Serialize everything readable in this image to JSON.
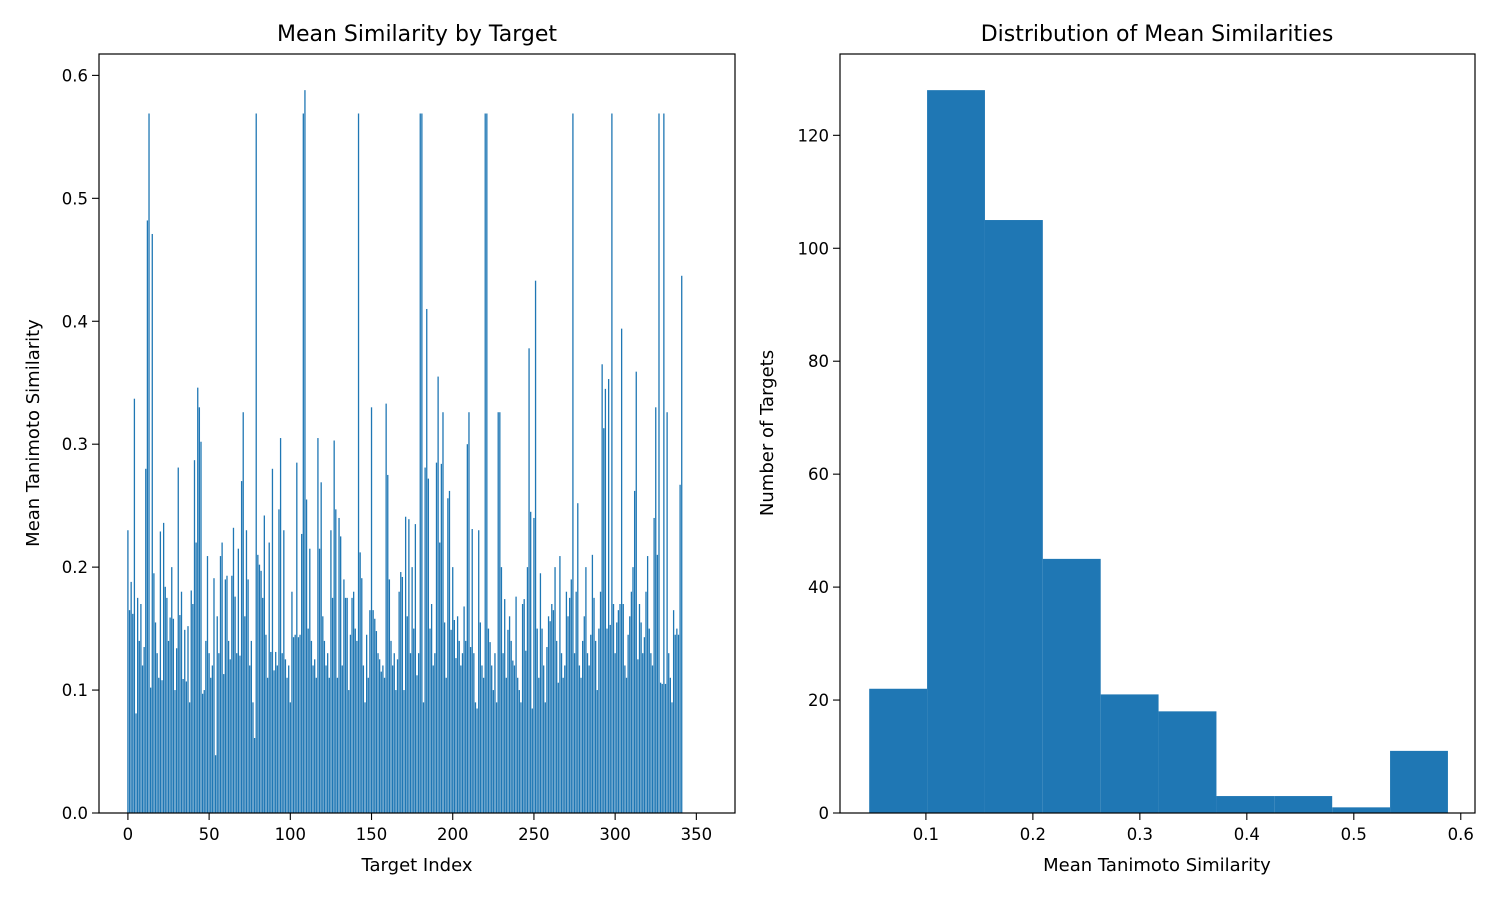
{
  "chart_data": [
    {
      "type": "bar",
      "title": "Mean Similarity by Target",
      "xlabel": "Target Index",
      "ylabel": "Mean Tanimoto Similarity",
      "xlim": [
        -17.8,
        373.8
      ],
      "ylim": [
        0,
        0.6174
      ],
      "xticks": [
        0,
        50,
        100,
        150,
        200,
        250,
        300,
        350
      ],
      "yticks": [
        0.0,
        0.1,
        0.2,
        0.3,
        0.4,
        0.5,
        0.6
      ],
      "ytick_labels": [
        "0.0",
        "0.1",
        "0.2",
        "0.3",
        "0.4",
        "0.5",
        "0.6"
      ],
      "color": "#1f77b4",
      "grid": false,
      "bar_width": 0.8,
      "x_start": 0,
      "values": [
        0.23,
        0.165,
        0.188,
        0.162,
        0.337,
        0.081,
        0.175,
        0.14,
        0.17,
        0.12,
        0.135,
        0.28,
        0.482,
        0.569,
        0.102,
        0.471,
        0.195,
        0.155,
        0.13,
        0.11,
        0.229,
        0.108,
        0.236,
        0.184,
        0.175,
        0.14,
        0.159,
        0.2,
        0.158,
        0.1,
        0.134,
        0.281,
        0.161,
        0.18,
        0.109,
        0.149,
        0.107,
        0.152,
        0.09,
        0.181,
        0.17,
        0.287,
        0.22,
        0.346,
        0.33,
        0.302,
        0.097,
        0.1,
        0.14,
        0.209,
        0.13,
        0.11,
        0.12,
        0.191,
        0.047,
        0.16,
        0.13,
        0.209,
        0.22,
        0.113,
        0.19,
        0.193,
        0.14,
        0.125,
        0.193,
        0.232,
        0.176,
        0.13,
        0.215,
        0.128,
        0.27,
        0.326,
        0.16,
        0.23,
        0.19,
        0.12,
        0.14,
        0.09,
        0.061,
        0.569,
        0.21,
        0.202,
        0.197,
        0.175,
        0.242,
        0.145,
        0.11,
        0.22,
        0.131,
        0.28,
        0.116,
        0.131,
        0.12,
        0.247,
        0.305,
        0.13,
        0.23,
        0.125,
        0.11,
        0.12,
        0.09,
        0.18,
        0.143,
        0.145,
        0.285,
        0.143,
        0.145,
        0.227,
        0.569,
        0.588,
        0.255,
        0.15,
        0.215,
        0.14,
        0.12,
        0.125,
        0.11,
        0.305,
        0.215,
        0.269,
        0.16,
        0.14,
        0.12,
        0.13,
        0.11,
        0.23,
        0.175,
        0.303,
        0.247,
        0.11,
        0.24,
        0.225,
        0.12,
        0.19,
        0.175,
        0.175,
        0.1,
        0.145,
        0.175,
        0.18,
        0.15,
        0.14,
        0.569,
        0.212,
        0.191,
        0.12,
        0.09,
        0.145,
        0.11,
        0.165,
        0.33,
        0.165,
        0.158,
        0.148,
        0.13,
        0.125,
        0.115,
        0.12,
        0.11,
        0.333,
        0.275,
        0.19,
        0.14,
        0.12,
        0.13,
        0.1,
        0.125,
        0.18,
        0.196,
        0.192,
        0.1,
        0.241,
        0.16,
        0.239,
        0.13,
        0.2,
        0.15,
        0.235,
        0.112,
        0.13,
        0.569,
        0.569,
        0.09,
        0.281,
        0.41,
        0.272,
        0.15,
        0.17,
        0.12,
        0.13,
        0.285,
        0.355,
        0.22,
        0.284,
        0.326,
        0.155,
        0.11,
        0.256,
        0.262,
        0.149,
        0.2,
        0.157,
        0.126,
        0.16,
        0.14,
        0.12,
        0.13,
        0.168,
        0.14,
        0.3,
        0.326,
        0.135,
        0.231,
        0.13,
        0.09,
        0.085,
        0.23,
        0.155,
        0.12,
        0.11,
        0.569,
        0.569,
        0.15,
        0.139,
        0.12,
        0.1,
        0.13,
        0.09,
        0.326,
        0.326,
        0.2,
        0.13,
        0.174,
        0.11,
        0.149,
        0.16,
        0.14,
        0.124,
        0.12,
        0.176,
        0.11,
        0.1,
        0.09,
        0.17,
        0.174,
        0.132,
        0.2,
        0.378,
        0.245,
        0.085,
        0.24,
        0.433,
        0.15,
        0.11,
        0.195,
        0.15,
        0.12,
        0.09,
        0.135,
        0.16,
        0.156,
        0.17,
        0.165,
        0.2,
        0.14,
        0.106,
        0.209,
        0.13,
        0.11,
        0.12,
        0.18,
        0.16,
        0.175,
        0.19,
        0.569,
        0.13,
        0.18,
        0.252,
        0.12,
        0.11,
        0.14,
        0.16,
        0.2,
        0.13,
        0.12,
        0.145,
        0.21,
        0.175,
        0.14,
        0.1,
        0.15,
        0.18,
        0.365,
        0.313,
        0.345,
        0.15,
        0.353,
        0.153,
        0.569,
        0.17,
        0.13,
        0.155,
        0.165,
        0.17,
        0.394,
        0.17,
        0.12,
        0.11,
        0.145,
        0.16,
        0.18,
        0.2,
        0.262,
        0.359,
        0.125,
        0.17,
        0.155,
        0.13,
        0.143,
        0.18,
        0.209,
        0.15,
        0.13,
        0.12,
        0.24,
        0.33,
        0.21,
        0.569,
        0.106,
        0.105,
        0.569,
        0.105,
        0.326,
        0.13,
        0.11,
        0.09,
        0.165,
        0.145,
        0.15,
        0.145,
        0.267,
        0.437
      ]
    },
    {
      "type": "bar",
      "title": "Distribution of Mean Similarities",
      "xlabel": "Mean Tanimoto Similarity",
      "ylabel": "Number of Targets",
      "xlim": [
        0.0197,
        0.6133
      ],
      "ylim": [
        0,
        134.4
      ],
      "xticks": [
        0.1,
        0.2,
        0.3,
        0.4,
        0.5,
        0.6
      ],
      "xtick_labels": [
        "0.1",
        "0.2",
        "0.3",
        "0.4",
        "0.5",
        "0.6"
      ],
      "yticks": [
        0,
        20,
        40,
        60,
        80,
        100,
        120
      ],
      "color": "#1f77b4",
      "grid": false,
      "bin_edges": [
        0.047,
        0.1011,
        0.1552,
        0.2093,
        0.2634,
        0.3175,
        0.3716,
        0.4257,
        0.4798,
        0.5339,
        0.588
      ],
      "counts": [
        22,
        128,
        105,
        45,
        21,
        18,
        3,
        3,
        1,
        11
      ]
    }
  ]
}
